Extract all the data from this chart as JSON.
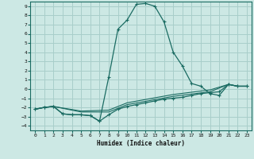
{
  "xlabel": "Humidex (Indice chaleur)",
  "bg_color": "#cce8e4",
  "grid_color": "#a8ceca",
  "line_color": "#1a6b62",
  "xlim": [
    -0.5,
    23.5
  ],
  "ylim": [
    -4.5,
    9.5
  ],
  "xticks": [
    0,
    1,
    2,
    3,
    4,
    5,
    6,
    7,
    8,
    9,
    10,
    11,
    12,
    13,
    14,
    15,
    16,
    17,
    18,
    19,
    20,
    21,
    22,
    23
  ],
  "yticks": [
    -4,
    -3,
    -2,
    -1,
    0,
    1,
    2,
    3,
    4,
    5,
    6,
    7,
    8,
    9
  ],
  "series1": [
    [
      0,
      -2.2
    ],
    [
      1,
      -2.0
    ],
    [
      2,
      -1.9
    ],
    [
      3,
      -2.7
    ],
    [
      4,
      -2.8
    ],
    [
      5,
      -2.8
    ],
    [
      6,
      -2.9
    ],
    [
      7,
      -3.5
    ],
    [
      8,
      1.3
    ],
    [
      9,
      6.5
    ],
    [
      10,
      7.5
    ],
    [
      11,
      9.2
    ],
    [
      12,
      9.3
    ],
    [
      13,
      9.0
    ],
    [
      14,
      7.3
    ],
    [
      15,
      4.0
    ],
    [
      16,
      2.5
    ],
    [
      17,
      0.6
    ],
    [
      18,
      0.3
    ],
    [
      19,
      -0.5
    ],
    [
      20,
      -0.7
    ],
    [
      21,
      0.5
    ],
    [
      22,
      0.3
    ],
    [
      23,
      0.3
    ]
  ],
  "series2": [
    [
      0,
      -2.2
    ],
    [
      1,
      -2.0
    ],
    [
      2,
      -1.9
    ],
    [
      3,
      -2.7
    ],
    [
      4,
      -2.8
    ],
    [
      5,
      -2.8
    ],
    [
      6,
      -2.9
    ],
    [
      7,
      -3.5
    ],
    [
      8,
      -2.8
    ],
    [
      9,
      -2.2
    ],
    [
      10,
      -1.9
    ],
    [
      11,
      -1.7
    ],
    [
      12,
      -1.5
    ],
    [
      13,
      -1.3
    ],
    [
      14,
      -1.1
    ],
    [
      15,
      -1.0
    ],
    [
      16,
      -0.9
    ],
    [
      17,
      -0.7
    ],
    [
      18,
      -0.5
    ],
    [
      19,
      -0.4
    ],
    [
      20,
      -0.3
    ],
    [
      21,
      0.5
    ],
    [
      22,
      0.3
    ],
    [
      23,
      0.3
    ]
  ],
  "series3": [
    [
      0,
      -2.2
    ],
    [
      1,
      -2.0
    ],
    [
      2,
      -1.9
    ],
    [
      5,
      -2.5
    ],
    [
      8,
      -2.5
    ],
    [
      10,
      -1.7
    ],
    [
      15,
      -0.8
    ],
    [
      19,
      -0.3
    ],
    [
      21,
      0.5
    ],
    [
      22,
      0.3
    ],
    [
      23,
      0.3
    ]
  ],
  "series4": [
    [
      0,
      -2.2
    ],
    [
      1,
      -2.0
    ],
    [
      2,
      -1.9
    ],
    [
      5,
      -2.4
    ],
    [
      8,
      -2.3
    ],
    [
      10,
      -1.5
    ],
    [
      15,
      -0.6
    ],
    [
      19,
      -0.1
    ],
    [
      21,
      0.5
    ],
    [
      22,
      0.3
    ],
    [
      23,
      0.3
    ]
  ]
}
